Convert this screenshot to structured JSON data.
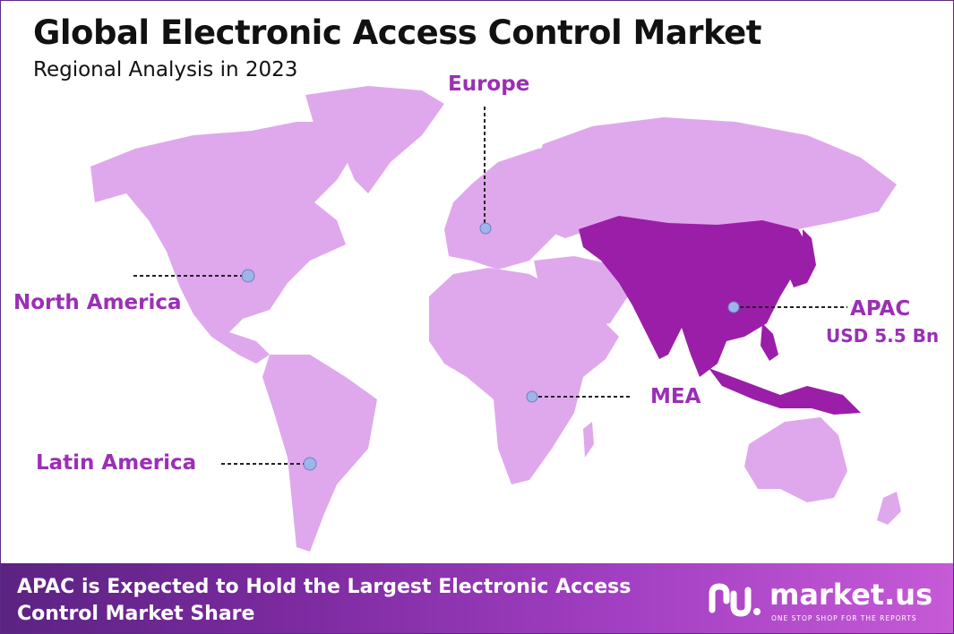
{
  "title": "Global Electronic Access Control Market",
  "subtitle": "Regional Analysis in 2023",
  "colors": {
    "land": "#dfa8ec",
    "highlight": "#9b1ea8",
    "label": "#9b2fb5",
    "marker": "#9fb4e8"
  },
  "regions": {
    "europe": "Europe",
    "north_america": "North America",
    "latin_america": "Latin America",
    "mea": "MEA",
    "apac": "APAC",
    "apac_value": "USD 5.5 Bn"
  },
  "highlighted_region": "APAC",
  "footer": {
    "headline": "APAC is Expected to Hold the Largest Electronic Access Control Market Share"
  },
  "brand": {
    "name": "market.us",
    "tagline": "ONE STOP SHOP FOR THE REPORTS"
  }
}
